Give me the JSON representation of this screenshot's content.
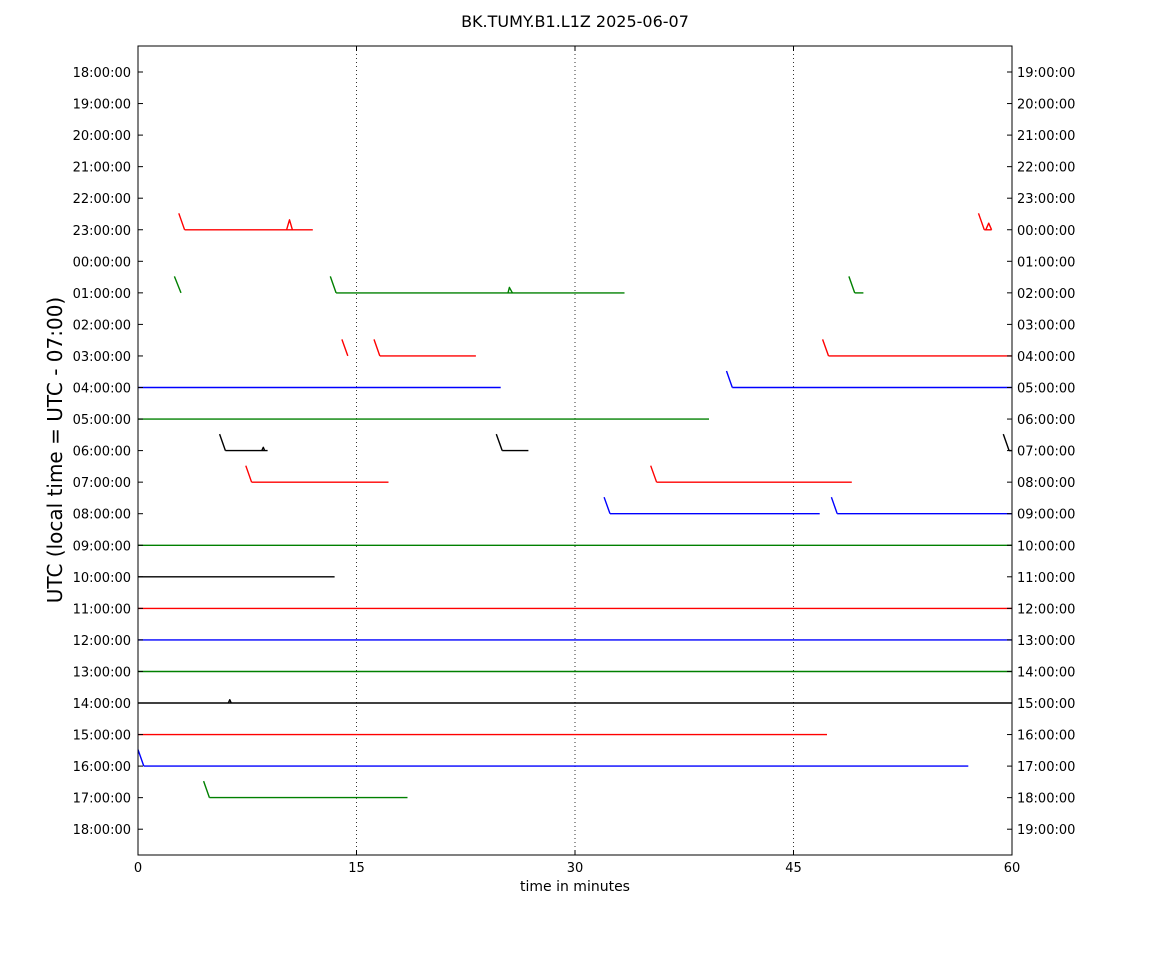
{
  "chart_data": {
    "type": "line",
    "title": "BK.TUMY.B1.L1Z 2025-06-07",
    "xlabel": "time in minutes",
    "ylabel": "UTC (local time = UTC - 07:00)",
    "xlim": [
      0,
      60
    ],
    "x_ticks": [
      "0",
      "15",
      "30",
      "45",
      "60"
    ],
    "grid": "vertical dotted at 15, 30, 45",
    "left_tick_labels": [
      "18:00:00",
      "19:00:00",
      "20:00:00",
      "21:00:00",
      "22:00:00",
      "23:00:00",
      "00:00:00",
      "01:00:00",
      "02:00:00",
      "03:00:00",
      "04:00:00",
      "05:00:00",
      "06:00:00",
      "07:00:00",
      "08:00:00",
      "09:00:00",
      "10:00:00",
      "11:00:00",
      "12:00:00",
      "13:00:00",
      "14:00:00",
      "15:00:00",
      "16:00:00",
      "17:00:00",
      "18:00:00"
    ],
    "right_tick_labels": [
      "19:00:00",
      "20:00:00",
      "21:00:00",
      "22:00:00",
      "23:00:00",
      "00:00:00",
      "01:00:00",
      "02:00:00",
      "03:00:00",
      "04:00:00",
      "05:00:00",
      "06:00:00",
      "07:00:00",
      "08:00:00",
      "09:00:00",
      "10:00:00",
      "11:00:00",
      "12:00:00",
      "13:00:00",
      "14:00:00",
      "15:00:00",
      "16:00:00",
      "17:00:00",
      "18:00:00",
      "19:00:00"
    ],
    "colors": [
      "#000000",
      "#ff0000",
      "#0000ff",
      "#008000"
    ],
    "traces": [
      {
        "row": 5,
        "color": "#ff0000",
        "segments": [
          [
            [
              2.8,
              1.5
            ],
            [
              3.2,
              0
            ]
          ],
          [
            [
              3.2,
              0
            ],
            [
              12.0,
              0
            ]
          ],
          [
            [
              10.2,
              0
            ],
            [
              10.4,
              0.9
            ],
            [
              10.6,
              0
            ]
          ],
          [
            [
              57.7,
              1.5
            ],
            [
              58.1,
              0
            ]
          ],
          [
            [
              58.1,
              0
            ],
            [
              58.6,
              0
            ]
          ],
          [
            [
              58.2,
              0
            ],
            [
              58.4,
              0.6
            ],
            [
              58.6,
              0
            ]
          ]
        ]
      },
      {
        "row": 7,
        "color": "#008000",
        "segments": [
          [
            [
              2.5,
              1.5
            ],
            [
              2.95,
              0
            ]
          ],
          [
            [
              13.2,
              1.5
            ],
            [
              13.6,
              0
            ]
          ],
          [
            [
              13.6,
              0
            ],
            [
              33.4,
              0
            ]
          ],
          [
            [
              25.4,
              0
            ],
            [
              25.5,
              0.5
            ],
            [
              25.7,
              0
            ]
          ],
          [
            [
              48.8,
              1.5
            ],
            [
              49.2,
              0
            ]
          ],
          [
            [
              49.2,
              0
            ],
            [
              49.8,
              0
            ]
          ]
        ]
      },
      {
        "row": 9,
        "color": "#ff0000",
        "segments": [
          [
            [
              14.0,
              1.5
            ],
            [
              14.4,
              0
            ]
          ],
          [
            [
              16.2,
              1.5
            ],
            [
              16.6,
              0
            ]
          ],
          [
            [
              16.6,
              0
            ],
            [
              23.2,
              0
            ]
          ],
          [
            [
              47.0,
              1.5
            ],
            [
              47.4,
              0
            ]
          ],
          [
            [
              47.4,
              0
            ],
            [
              60,
              0
            ]
          ]
        ]
      },
      {
        "row": 10,
        "color": "#0000ff",
        "segments": [
          [
            [
              0,
              0
            ],
            [
              24.9,
              0
            ]
          ],
          [
            [
              40.4,
              1.5
            ],
            [
              40.8,
              0
            ]
          ],
          [
            [
              40.8,
              0
            ],
            [
              60,
              0
            ]
          ]
        ]
      },
      {
        "row": 11,
        "color": "#008000",
        "segments": [
          [
            [
              0,
              0
            ],
            [
              39.2,
              0
            ]
          ]
        ]
      },
      {
        "row": 12,
        "color": "#000000",
        "segments": [
          [
            [
              5.6,
              1.5
            ],
            [
              6.0,
              0
            ]
          ],
          [
            [
              6.0,
              0
            ],
            [
              8.9,
              0
            ]
          ],
          [
            [
              8.5,
              0
            ],
            [
              8.6,
              0.3
            ],
            [
              8.7,
              0
            ]
          ],
          [
            [
              24.6,
              1.5
            ],
            [
              25.0,
              0
            ]
          ],
          [
            [
              25.0,
              0
            ],
            [
              26.8,
              0
            ]
          ],
          [
            [
              59.4,
              1.5
            ],
            [
              59.8,
              0
            ]
          ],
          [
            [
              59.8,
              0
            ],
            [
              60,
              0
            ]
          ]
        ]
      },
      {
        "row": 13,
        "color": "#ff0000",
        "segments": [
          [
            [
              7.4,
              1.5
            ],
            [
              7.8,
              0
            ]
          ],
          [
            [
              7.8,
              0
            ],
            [
              17.2,
              0
            ]
          ],
          [
            [
              35.2,
              1.5
            ],
            [
              35.6,
              0
            ]
          ],
          [
            [
              35.6,
              0
            ],
            [
              49.0,
              0
            ]
          ]
        ]
      },
      {
        "row": 14,
        "color": "#0000ff",
        "segments": [
          [
            [
              32.0,
              1.5
            ],
            [
              32.4,
              0
            ]
          ],
          [
            [
              32.4,
              0
            ],
            [
              46.8,
              0
            ]
          ],
          [
            [
              47.6,
              1.5
            ],
            [
              48.0,
              0
            ]
          ],
          [
            [
              48.0,
              0
            ],
            [
              60,
              0
            ]
          ]
        ]
      },
      {
        "row": 15,
        "color": "#008000",
        "segments": [
          [
            [
              0,
              0
            ],
            [
              60,
              0
            ]
          ]
        ]
      },
      {
        "row": 16,
        "color": "#000000",
        "segments": [
          [
            [
              0,
              0
            ],
            [
              13.5,
              0
            ]
          ]
        ]
      },
      {
        "row": 17,
        "color": "#ff0000",
        "segments": [
          [
            [
              0,
              0
            ],
            [
              60,
              0
            ]
          ]
        ]
      },
      {
        "row": 18,
        "color": "#0000ff",
        "segments": [
          [
            [
              0,
              0
            ],
            [
              60,
              0
            ]
          ]
        ]
      },
      {
        "row": 19,
        "color": "#008000",
        "segments": [
          [
            [
              0,
              0
            ],
            [
              60,
              0
            ]
          ]
        ]
      },
      {
        "row": 20,
        "color": "#000000",
        "segments": [
          [
            [
              0,
              0
            ],
            [
              60,
              0
            ]
          ],
          [
            [
              6.2,
              0
            ],
            [
              6.3,
              0.3
            ],
            [
              6.4,
              0
            ]
          ]
        ]
      },
      {
        "row": 21,
        "color": "#ff0000",
        "segments": [
          [
            [
              0,
              0
            ],
            [
              47.3,
              0
            ]
          ]
        ]
      },
      {
        "row": 22,
        "color": "#0000ff",
        "segments": [
          [
            [
              0,
              1.5
            ],
            [
              0.4,
              0
            ]
          ],
          [
            [
              0.4,
              0
            ],
            [
              57.0,
              0
            ]
          ]
        ]
      },
      {
        "row": 23,
        "color": "#008000",
        "segments": [
          [
            [
              4.5,
              1.5
            ],
            [
              4.9,
              0
            ]
          ],
          [
            [
              4.9,
              0
            ],
            [
              18.5,
              0
            ]
          ]
        ]
      }
    ]
  }
}
